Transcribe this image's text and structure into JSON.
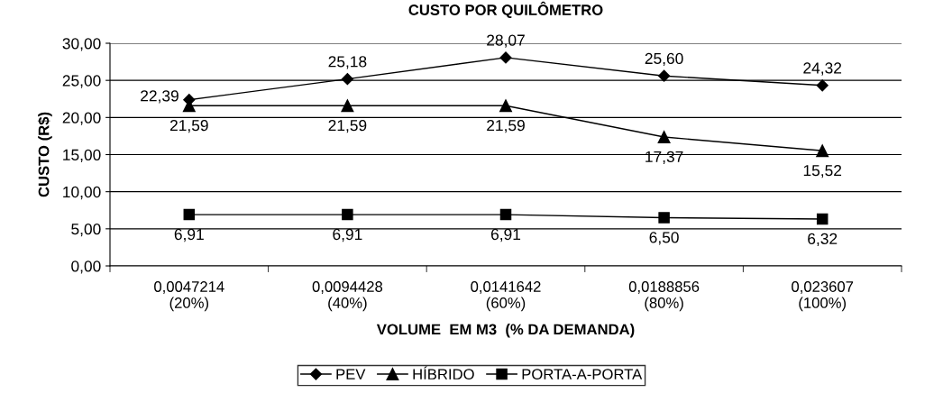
{
  "chart_data": {
    "type": "line",
    "title": "CUSTO POR QUILÔMETRO",
    "xlabel": "VOLUME  EM M3  (% DA DEMANDA)",
    "ylabel": "CUSTO (R$)",
    "categories": [
      "0,0047214\n(20%)",
      "0,0094428\n(40%)",
      "0,0141642\n(60%)",
      "0,0188856\n(80%)",
      "0,023607\n(100%)"
    ],
    "series": [
      {
        "name": "PEV",
        "color": "#000000",
        "marker": "diamond",
        "values": [
          22.39,
          25.18,
          28.07,
          25.6,
          24.32
        ],
        "value_labels": [
          "22,39",
          "25,18",
          "28,07",
          "25,60",
          "24,32"
        ]
      },
      {
        "name": "HÍBRIDO",
        "color": "#000000",
        "marker": "triangle",
        "values": [
          21.59,
          21.59,
          21.59,
          17.37,
          15.52
        ],
        "value_labels": [
          "21,59",
          "21,59",
          "21,59",
          "17,37",
          "15,52"
        ]
      },
      {
        "name": "PORTA-A-PORTA",
        "color": "#000000",
        "marker": "square",
        "values": [
          6.91,
          6.91,
          6.91,
          6.5,
          6.32
        ],
        "value_labels": [
          "6,91",
          "6,91",
          "6,91",
          "6,50",
          "6,32"
        ]
      }
    ],
    "ylim": [
      0,
      30
    ],
    "yticks": [
      {
        "value": 0,
        "label": "0,00"
      },
      {
        "value": 5,
        "label": "5,00"
      },
      {
        "value": 10,
        "label": "10,00"
      },
      {
        "value": 15,
        "label": "15,00"
      },
      {
        "value": 20,
        "label": "20,00"
      },
      {
        "value": 25,
        "label": "25,00"
      },
      {
        "value": 30,
        "label": "30,00"
      }
    ],
    "grid": "y",
    "legend": "bottom",
    "line_style": "solid"
  }
}
